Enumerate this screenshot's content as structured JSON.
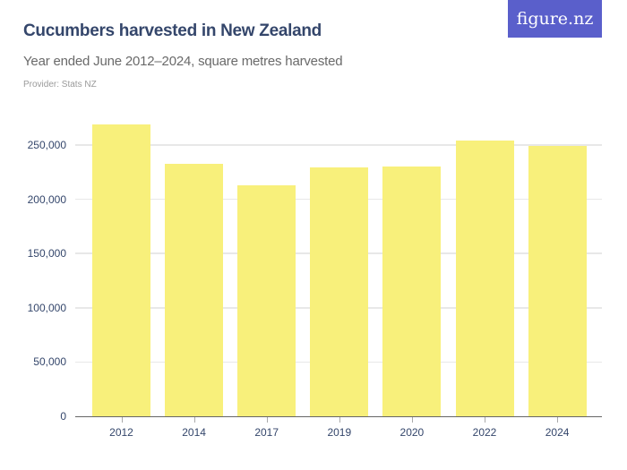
{
  "header": {
    "title": "Cucumbers harvested in New Zealand",
    "subtitle": "Year ended June 2012–2024, square metres harvested",
    "provider": "Provider: Stats NZ",
    "logo": "figure.nz"
  },
  "colors": {
    "bar": "#f8f07b",
    "title": "#34466b",
    "logo_bg": "#5a5fcb"
  },
  "chart_data": {
    "type": "bar",
    "title": "Cucumbers harvested in New Zealand",
    "subtitle": "Year ended June 2012–2024, square metres harvested",
    "xlabel": "",
    "ylabel": "Square metres harvested",
    "categories": [
      "2012",
      "2014",
      "2017",
      "2019",
      "2020",
      "2022",
      "2024"
    ],
    "values": [
      269000,
      232500,
      213000,
      229000,
      230000,
      254500,
      249500
    ],
    "ylim": [
      0,
      275000
    ],
    "yticks": [
      0,
      50000,
      100000,
      150000,
      200000,
      250000
    ],
    "ytick_labels": [
      "0",
      "50,000",
      "100,000",
      "150,000",
      "200,000",
      "250,000"
    ],
    "grid": true,
    "legend": null
  }
}
